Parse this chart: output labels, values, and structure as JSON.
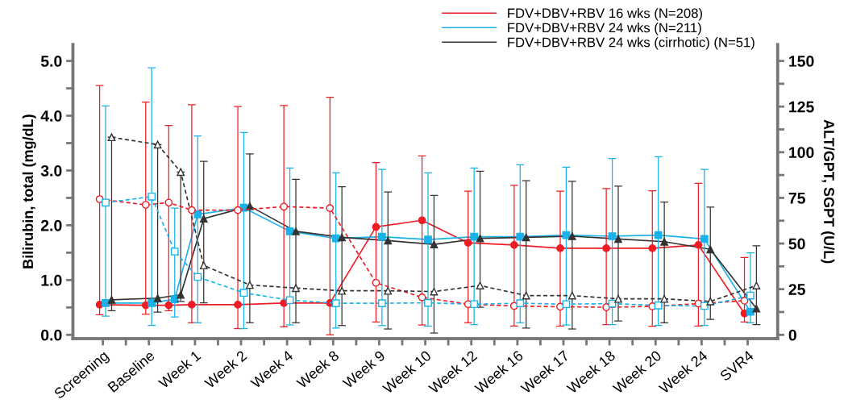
{
  "chart_data": {
    "type": "line",
    "ylabel": "Bilirubin, total (mg/dL)",
    "y2label": "ALT/GPT, SGPT (U/L)",
    "categories": [
      "Screening",
      null,
      "Baseline",
      null,
      "Week 1",
      null,
      "Week 2",
      null,
      "Week 4",
      null,
      "Week 8",
      null,
      "Week 9",
      null,
      "Week 10",
      null,
      "Week 12",
      null,
      "Week 16",
      null,
      "Week 17",
      null,
      "Week 18",
      null,
      "Week 20",
      null,
      "Week 24",
      null,
      "SVR4"
    ],
    "ylim": [
      -0.07,
      5.3
    ],
    "yticks": [
      {
        "value": 0,
        "label": "0.0"
      },
      {
        "value": 0.5,
        "label": null
      },
      {
        "value": 1,
        "label": "1.0"
      },
      {
        "value": 1.5,
        "label": null
      },
      {
        "value": 2,
        "label": "2.0"
      },
      {
        "value": 2.5,
        "label": null
      },
      {
        "value": 3,
        "label": "3.0"
      },
      {
        "value": 3.5,
        "label": null
      },
      {
        "value": 4,
        "label": "4.0"
      },
      {
        "value": 4.5,
        "label": null
      },
      {
        "value": 5,
        "label": "5.0"
      }
    ],
    "y2lim": [
      -2.1,
      159
    ],
    "y2ticks": [
      0,
      {
        "value": 12.5,
        "label": null
      },
      25,
      {
        "value": 37.5,
        "label": null
      },
      50,
      {
        "value": 62.5,
        "label": null
      },
      75,
      {
        "value": 87.5,
        "label": null
      },
      100,
      {
        "value": 112.5,
        "label": null
      },
      125,
      {
        "value": 137.5,
        "label": null
      },
      150
    ],
    "grid": false,
    "legend": "top right",
    "series": [
      {
        "name": "FDV+DBV+RBV 16 wks (N=208)",
        "color": "#ee1c25",
        "marker": "circle",
        "line_style": "solid",
        "values": [
          0.55,
          null,
          0.54,
          0.54,
          0.55,
          null,
          0.55,
          null,
          0.58,
          null,
          0.58,
          null,
          1.97,
          null,
          2.09,
          null,
          1.68,
          null,
          1.64,
          null,
          1.58,
          null,
          1.58,
          null,
          1.58,
          null,
          1.64,
          null,
          0.39
        ]
      },
      {
        "name": "FDV+DBV+RBV 24 wks (N=211)",
        "color": "#1ab2e8",
        "marker": "square",
        "line_style": "solid",
        "values": [
          0.58,
          null,
          0.58,
          0.65,
          2.2,
          null,
          2.32,
          null,
          1.89,
          null,
          1.76,
          null,
          1.79,
          null,
          1.74,
          null,
          1.79,
          null,
          1.79,
          null,
          1.82,
          null,
          1.8,
          null,
          1.82,
          null,
          1.75,
          null,
          0.42
        ]
      },
      {
        "name": "FDV+DBV+RBV 24 wks (cirrhotic) (N=51)",
        "color": "#333333",
        "marker": "triangle",
        "line_style": "solid",
        "values": [
          0.64,
          null,
          0.67,
          0.73,
          2.12,
          null,
          2.35,
          null,
          1.89,
          null,
          1.78,
          null,
          1.72,
          null,
          1.65,
          null,
          1.76,
          null,
          1.78,
          null,
          1.8,
          null,
          1.75,
          null,
          1.7,
          null,
          1.56,
          null,
          0.48
        ]
      },
      {
        "color": "#ee1c25",
        "marker": "circle",
        "line_style": "dashed",
        "axis": "y2",
        "values": [
          74.3,
          null,
          71.2,
          72.4,
          68.3,
          null,
          68.3,
          null,
          70.2,
          null,
          69.4,
          null,
          28.5,
          null,
          20.5,
          null,
          16.8,
          null,
          15.8,
          null,
          15.4,
          null,
          15.1,
          null,
          15.6,
          null,
          17.1,
          null,
          18.7
        ],
        "errors": [
          [
            11.0,
            136.5
          ],
          null,
          [
            11.3,
            127.5
          ],
          [
            13.2,
            114.6
          ],
          [
            6.6,
            126.0
          ],
          null,
          [
            3.4,
            125.0
          ],
          null,
          [
            4.4,
            125.6
          ],
          null,
          [
            0.0,
            130.1
          ],
          null,
          [
            7.0,
            94.3
          ],
          null,
          [
            5.4,
            98.0
          ],
          null,
          [
            6.6,
            78.7
          ],
          null,
          [
            4.8,
            81.9
          ],
          null,
          [
            4.8,
            78.7
          ],
          null,
          [
            5.6,
            80.1
          ],
          null,
          [
            4.7,
            78.9
          ],
          null,
          [
            4.8,
            83.0
          ],
          null,
          [
            7.0,
            42.4
          ]
        ]
      },
      {
        "color": "#1ab2e8",
        "marker": "square",
        "line_style": "dashed",
        "axis": "y2",
        "values": [
          72.4,
          null,
          75.7,
          45.6,
          31.7,
          null,
          23.0,
          null,
          19.0,
          null,
          17.3,
          null,
          17.3,
          null,
          17.5,
          null,
          16.8,
          null,
          17.3,
          null,
          16.8,
          null,
          17.1,
          null,
          16.1,
          null,
          15.8,
          null,
          21.5
        ],
        "errors": [
          [
            10.2,
            125.4
          ],
          null,
          [
            5.1,
            146.2
          ],
          [
            9.8,
            69.4
          ],
          [
            6.6,
            108.9
          ],
          null,
          [
            3.4,
            110.8
          ],
          null,
          [
            5.4,
            91.4
          ],
          null,
          [
            3.7,
            88.7
          ],
          null,
          [
            5.1,
            90.6
          ],
          null,
          [
            4.8,
            88.7
          ],
          null,
          [
            5.6,
            91.4
          ],
          null,
          [
            6.6,
            93.1
          ],
          null,
          [
            5.4,
            91.8
          ],
          null,
          [
            5.6,
            96.5
          ],
          null,
          [
            5.1,
            97.5
          ],
          null,
          [
            5.1,
            90.6
          ],
          null,
          [
            6.6,
            44.9
          ]
        ]
      },
      {
        "color": "#333333",
        "marker": "triangle",
        "line_style": "dashed",
        "axis": "y2",
        "values": [
          108.2,
          null,
          104.2,
          89.2,
          38.0,
          null,
          27.3,
          null,
          25.6,
          null,
          24.1,
          null,
          24.1,
          null,
          23.7,
          null,
          27.0,
          null,
          21.5,
          null,
          21.5,
          null,
          19.7,
          null,
          19.7,
          null,
          18.3,
          null,
          27.0
        ],
        "errors": [
          [
            13.2,
            108.2
          ],
          null,
          [
            12.4,
            104.2
          ],
          [
            18.3,
            89.2
          ],
          [
            17.5,
            95.0
          ],
          null,
          [
            6.6,
            99.1
          ],
          null,
          [
            6.6,
            85.2
          ],
          null,
          [
            5.1,
            81.1
          ],
          null,
          [
            3.2,
            78.2
          ],
          null,
          [
            1.0,
            76.3
          ],
          null,
          [
            15.1,
            89.6
          ],
          null,
          [
            3.7,
            84.4
          ],
          null,
          [
            3.2,
            84.1
          ],
          null,
          [
            7.6,
            81.4
          ],
          null,
          [
            6.6,
            72.7
          ],
          null,
          [
            8.5,
            69.9
          ],
          null,
          [
            5.6,
            48.7
          ]
        ]
      }
    ]
  }
}
